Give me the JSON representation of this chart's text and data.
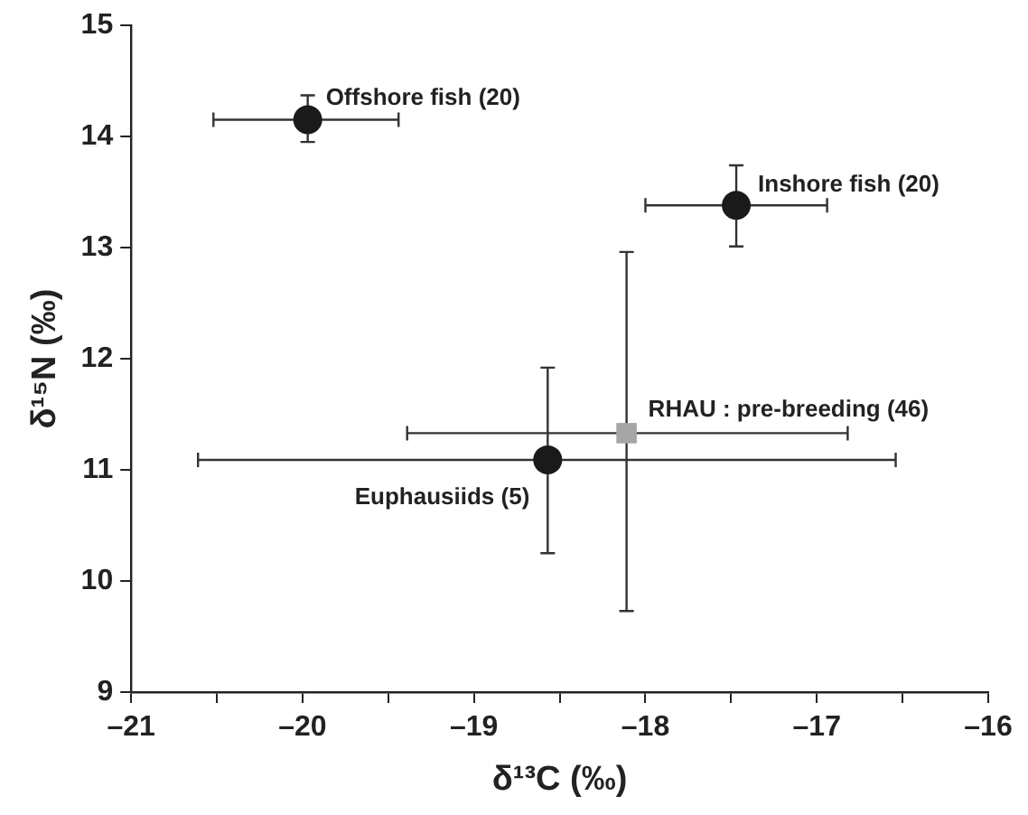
{
  "chart_data": {
    "type": "scatter",
    "xlabel": "δ¹³C (‰)",
    "ylabel": "δ¹⁵N (‰)",
    "xlim": [
      -21,
      -16
    ],
    "ylim": [
      9,
      15
    ],
    "xticks": [
      {
        "value": -21,
        "label": "–21"
      },
      {
        "value": -20.5,
        "label": null
      },
      {
        "value": -20,
        "label": "–20"
      },
      {
        "value": -19.5,
        "label": null
      },
      {
        "value": -19,
        "label": "–19"
      },
      {
        "value": -18.5,
        "label": null
      },
      {
        "value": -18,
        "label": "–18"
      },
      {
        "value": -17.5,
        "label": null
      },
      {
        "value": -17,
        "label": "–17"
      },
      {
        "value": -16.5,
        "label": null
      },
      {
        "value": -16,
        "label": "–16"
      }
    ],
    "yticks": [
      9,
      10,
      11,
      12,
      13,
      14,
      15
    ],
    "series": [
      {
        "name": "Offshore fish (20)",
        "color": "#1a1a1a",
        "marker": "circle",
        "x": [
          -19.97
        ],
        "values": [
          14.15
        ],
        "xerrors": [
          [
            -20.52,
            -19.44
          ]
        ],
        "errors": [
          [
            13.95,
            14.37
          ]
        ]
      },
      {
        "name": "Inshore fish (20)",
        "color": "#1a1a1a",
        "marker": "circle",
        "x": [
          -17.47
        ],
        "values": [
          13.38
        ],
        "xerrors": [
          [
            -18.0,
            -16.94
          ]
        ],
        "errors": [
          [
            13.01,
            13.74
          ]
        ]
      },
      {
        "name": "Euphausiids (5)",
        "color": "#1a1a1a",
        "marker": "circle",
        "x": [
          -18.57
        ],
        "values": [
          11.09
        ],
        "xerrors": [
          [
            -20.61,
            -16.54
          ]
        ],
        "errors": [
          [
            10.25,
            11.92
          ]
        ]
      },
      {
        "name": "RHAU : pre-breeding (46)",
        "color": "#a6a6a6",
        "marker": "square",
        "x": [
          -18.11
        ],
        "values": [
          11.33
        ],
        "xerrors": [
          [
            -19.39,
            -16.82
          ]
        ],
        "errors": [
          [
            9.73,
            12.96
          ]
        ]
      }
    ]
  }
}
